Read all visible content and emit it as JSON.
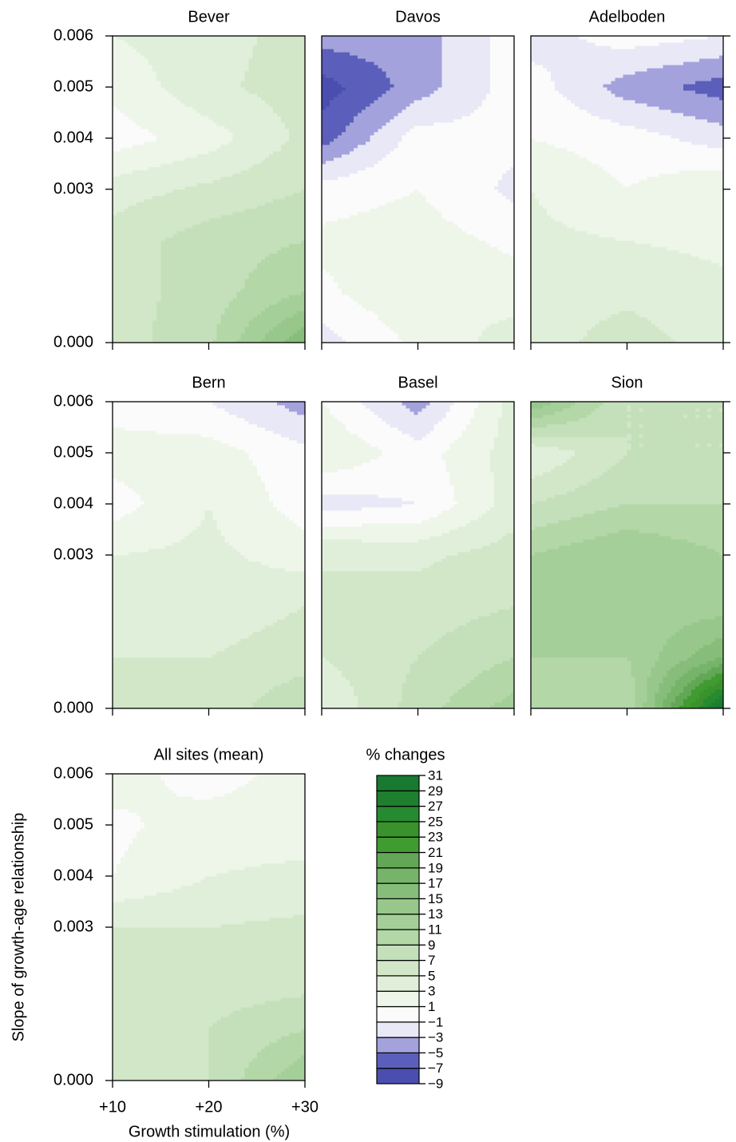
{
  "chart_data": {
    "type": "contour",
    "xlabel": "Growth stimulation (%)",
    "ylabel": "Slope of growth-age relationship",
    "legend_title": "% changes",
    "x": [
      10,
      20,
      30
    ],
    "y": [
      0,
      0.001,
      0.002,
      0.003,
      0.004,
      0.005,
      0.006
    ],
    "xlim": [
      10,
      30
    ],
    "ylim": [
      0,
      0.006
    ],
    "xticks": [
      {
        "value": 10,
        "label": "+10"
      },
      {
        "value": 20,
        "label": "+20"
      },
      {
        "value": 30,
        "label": "+30"
      }
    ],
    "yticks": [
      {
        "value": 0,
        "label": "0.000"
      },
      {
        "value": 0.003,
        "label": "0.003"
      },
      {
        "value": 0.004,
        "label": "0.004"
      },
      {
        "value": 0.005,
        "label": "0.005"
      },
      {
        "value": 0.006,
        "label": "0.006"
      }
    ],
    "levels": [
      {
        "value": -9,
        "label": "−9"
      },
      {
        "value": -7,
        "label": "−7"
      },
      {
        "value": -5,
        "label": "−5"
      },
      {
        "value": -3,
        "label": "−3"
      },
      {
        "value": -1,
        "label": "−1"
      },
      1,
      3,
      5,
      7,
      9,
      11,
      13,
      15,
      17,
      19,
      21,
      23,
      25,
      27,
      29,
      31
    ],
    "colors": [
      "#4a4eae",
      "#5b5fbb",
      "#a3a2dd",
      "#e9e8f6",
      "#fbfbfb",
      "#edf6e9",
      "#e0efd9",
      "#d1e7c8",
      "#c4e0ba",
      "#b3d7a7",
      "#a5cf99",
      "#97c78a",
      "#87bd7a",
      "#76b46a",
      "#62a756",
      "#409b30",
      "#3a922c",
      "#268a30",
      "#1e7f2f",
      "#187a30"
    ],
    "panels": [
      {
        "title": "Bever",
        "z": [
          [
            6,
            8.5,
            17
          ],
          [
            6,
            8,
            11
          ],
          [
            6,
            8,
            9
          ],
          [
            4,
            5.5,
            7
          ],
          [
            0,
            2,
            5.5
          ],
          [
            1.5,
            4.5,
            6
          ],
          [
            3,
            4,
            6
          ]
        ]
      },
      {
        "title": "Davos",
        "z": [
          [
            -2,
            1.5,
            4
          ],
          [
            0.5,
            3,
            2
          ],
          [
            1.5,
            2,
            0.5
          ],
          [
            0,
            1,
            -1.5
          ],
          [
            -6,
            0,
            -0.5
          ],
          [
            -8,
            -4,
            0
          ],
          [
            -4,
            -4,
            0
          ]
        ]
      },
      {
        "title": "Adelboden",
        "z": [
          [
            4,
            6,
            4
          ],
          [
            4,
            4.5,
            3.5
          ],
          [
            3.5,
            3,
            2.5
          ],
          [
            3,
            1,
            3
          ],
          [
            1,
            0,
            -2
          ],
          [
            0,
            -4,
            -6
          ],
          [
            -2,
            0,
            -1
          ]
        ]
      },
      {
        "title": "Bern",
        "z": [
          [
            5,
            5.5,
            9
          ],
          [
            5,
            5,
            6
          ],
          [
            3.5,
            4,
            5
          ],
          [
            3,
            3.5,
            2
          ],
          [
            0,
            3,
            0
          ],
          [
            2,
            2,
            -0.5
          ],
          [
            0,
            -1,
            -4
          ]
        ]
      },
      {
        "title": "Basel",
        "z": [
          [
            3,
            8,
            12
          ],
          [
            5,
            7,
            9
          ],
          [
            5,
            6,
            7
          ],
          [
            5,
            4.5,
            6
          ],
          [
            -2,
            -1,
            4
          ],
          [
            3,
            0,
            4
          ],
          [
            1,
            -4,
            4
          ]
        ]
      },
      {
        "title": "Sion",
        "z": [
          [
            11,
            9,
            31
          ],
          [
            11,
            11,
            17
          ],
          [
            11,
            12,
            12
          ],
          [
            11,
            13,
            11
          ],
          [
            7,
            9,
            9
          ],
          [
            3,
            7,
            7
          ],
          [
            15,
            7,
            7
          ]
        ]
      },
      {
        "title": "All sites (mean)",
        "z": [
          [
            5,
            7,
            13
          ],
          [
            5,
            7,
            9
          ],
          [
            5,
            6,
            6
          ],
          [
            5,
            5,
            5.5
          ],
          [
            1,
            3,
            3.5
          ],
          [
            0.5,
            2,
            2
          ],
          [
            2,
            0,
            2
          ]
        ]
      }
    ]
  }
}
